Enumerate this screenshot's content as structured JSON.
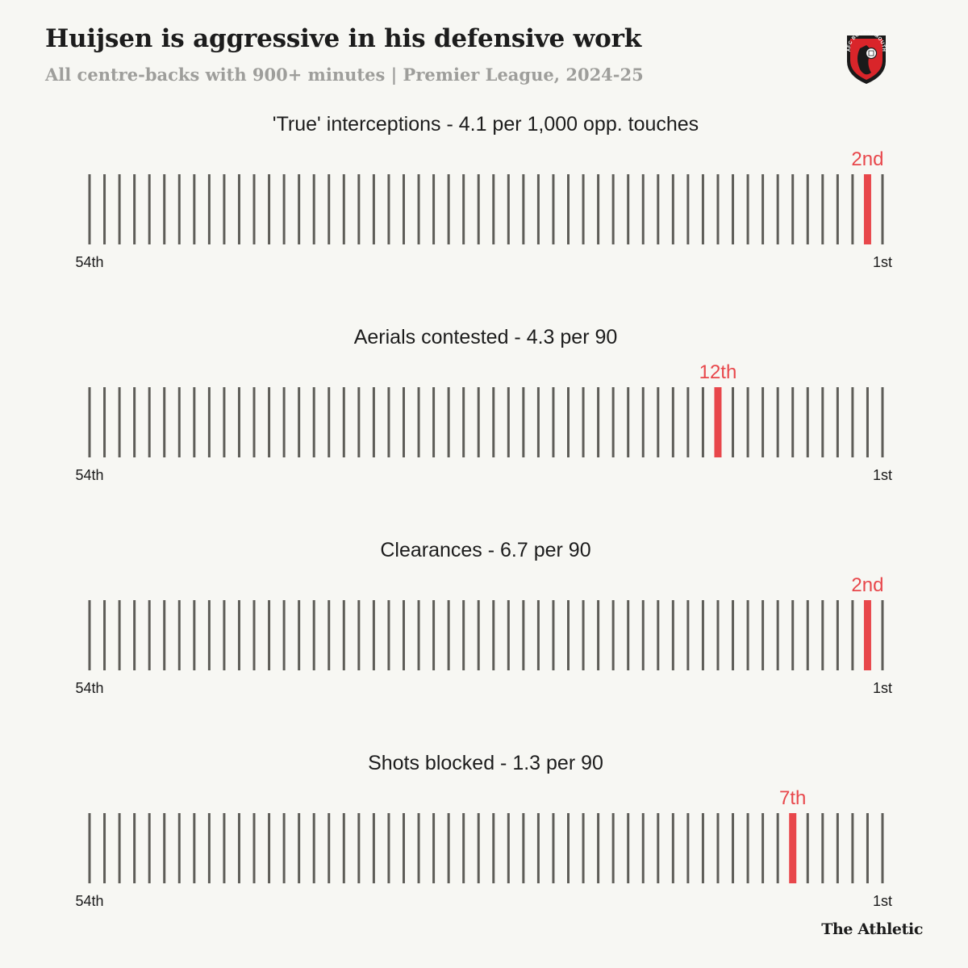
{
  "header": {
    "title": "Huijsen is aggressive in his defensive work",
    "subtitle": "All centre-backs with 900+ minutes | Premier League, 2024-25"
  },
  "logo": {
    "icon": "afc-bournemouth-crest-icon",
    "text": "AFC BOURNEMOUTH"
  },
  "footer": {
    "brand": "The Athletic"
  },
  "colors": {
    "highlight": "#e8474b",
    "bar": "#5e5d58",
    "background": "#f7f7f3"
  },
  "chart_data": [
    {
      "type": "bar",
      "title": "'True' interceptions - 4.1 per 1,000 opp. touches",
      "total_players": 54,
      "rank": 2,
      "rank_label": "2nd",
      "axis_left": "54th",
      "axis_right": "1st"
    },
    {
      "type": "bar",
      "title": "Aerials contested - 4.3 per 90",
      "total_players": 54,
      "rank": 12,
      "rank_label": "12th",
      "axis_left": "54th",
      "axis_right": "1st"
    },
    {
      "type": "bar",
      "title": "Clearances - 6.7 per 90",
      "total_players": 54,
      "rank": 2,
      "rank_label": "2nd",
      "axis_left": "54th",
      "axis_right": "1st"
    },
    {
      "type": "bar",
      "title": "Shots blocked - 1.3 per 90",
      "total_players": 54,
      "rank": 7,
      "rank_label": "7th",
      "axis_left": "54th",
      "axis_right": "1st"
    }
  ]
}
